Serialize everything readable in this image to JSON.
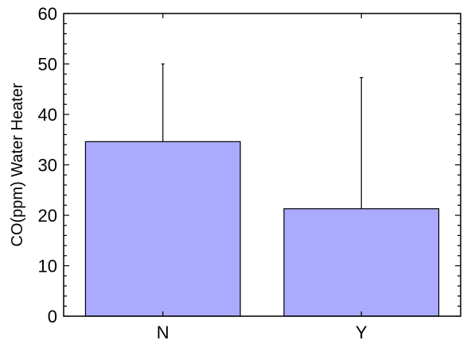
{
  "chart_data": {
    "type": "bar",
    "categories": [
      "N",
      "Y"
    ],
    "values": [
      34.6,
      21.3
    ],
    "error_upper": [
      50.0,
      47.3
    ],
    "title": "",
    "xlabel": "",
    "ylabel": "CO(ppm) Water Heater",
    "ylim": [
      0,
      60
    ],
    "yticks": [
      0,
      10,
      20,
      30,
      40,
      50,
      60
    ],
    "ytick_labels": [
      "0",
      "10",
      "20",
      "30",
      "40",
      "50",
      "60"
    ],
    "grid": false,
    "legend": "none",
    "bar_color": "#aaaaff",
    "bar_edge_color": "#000000"
  }
}
